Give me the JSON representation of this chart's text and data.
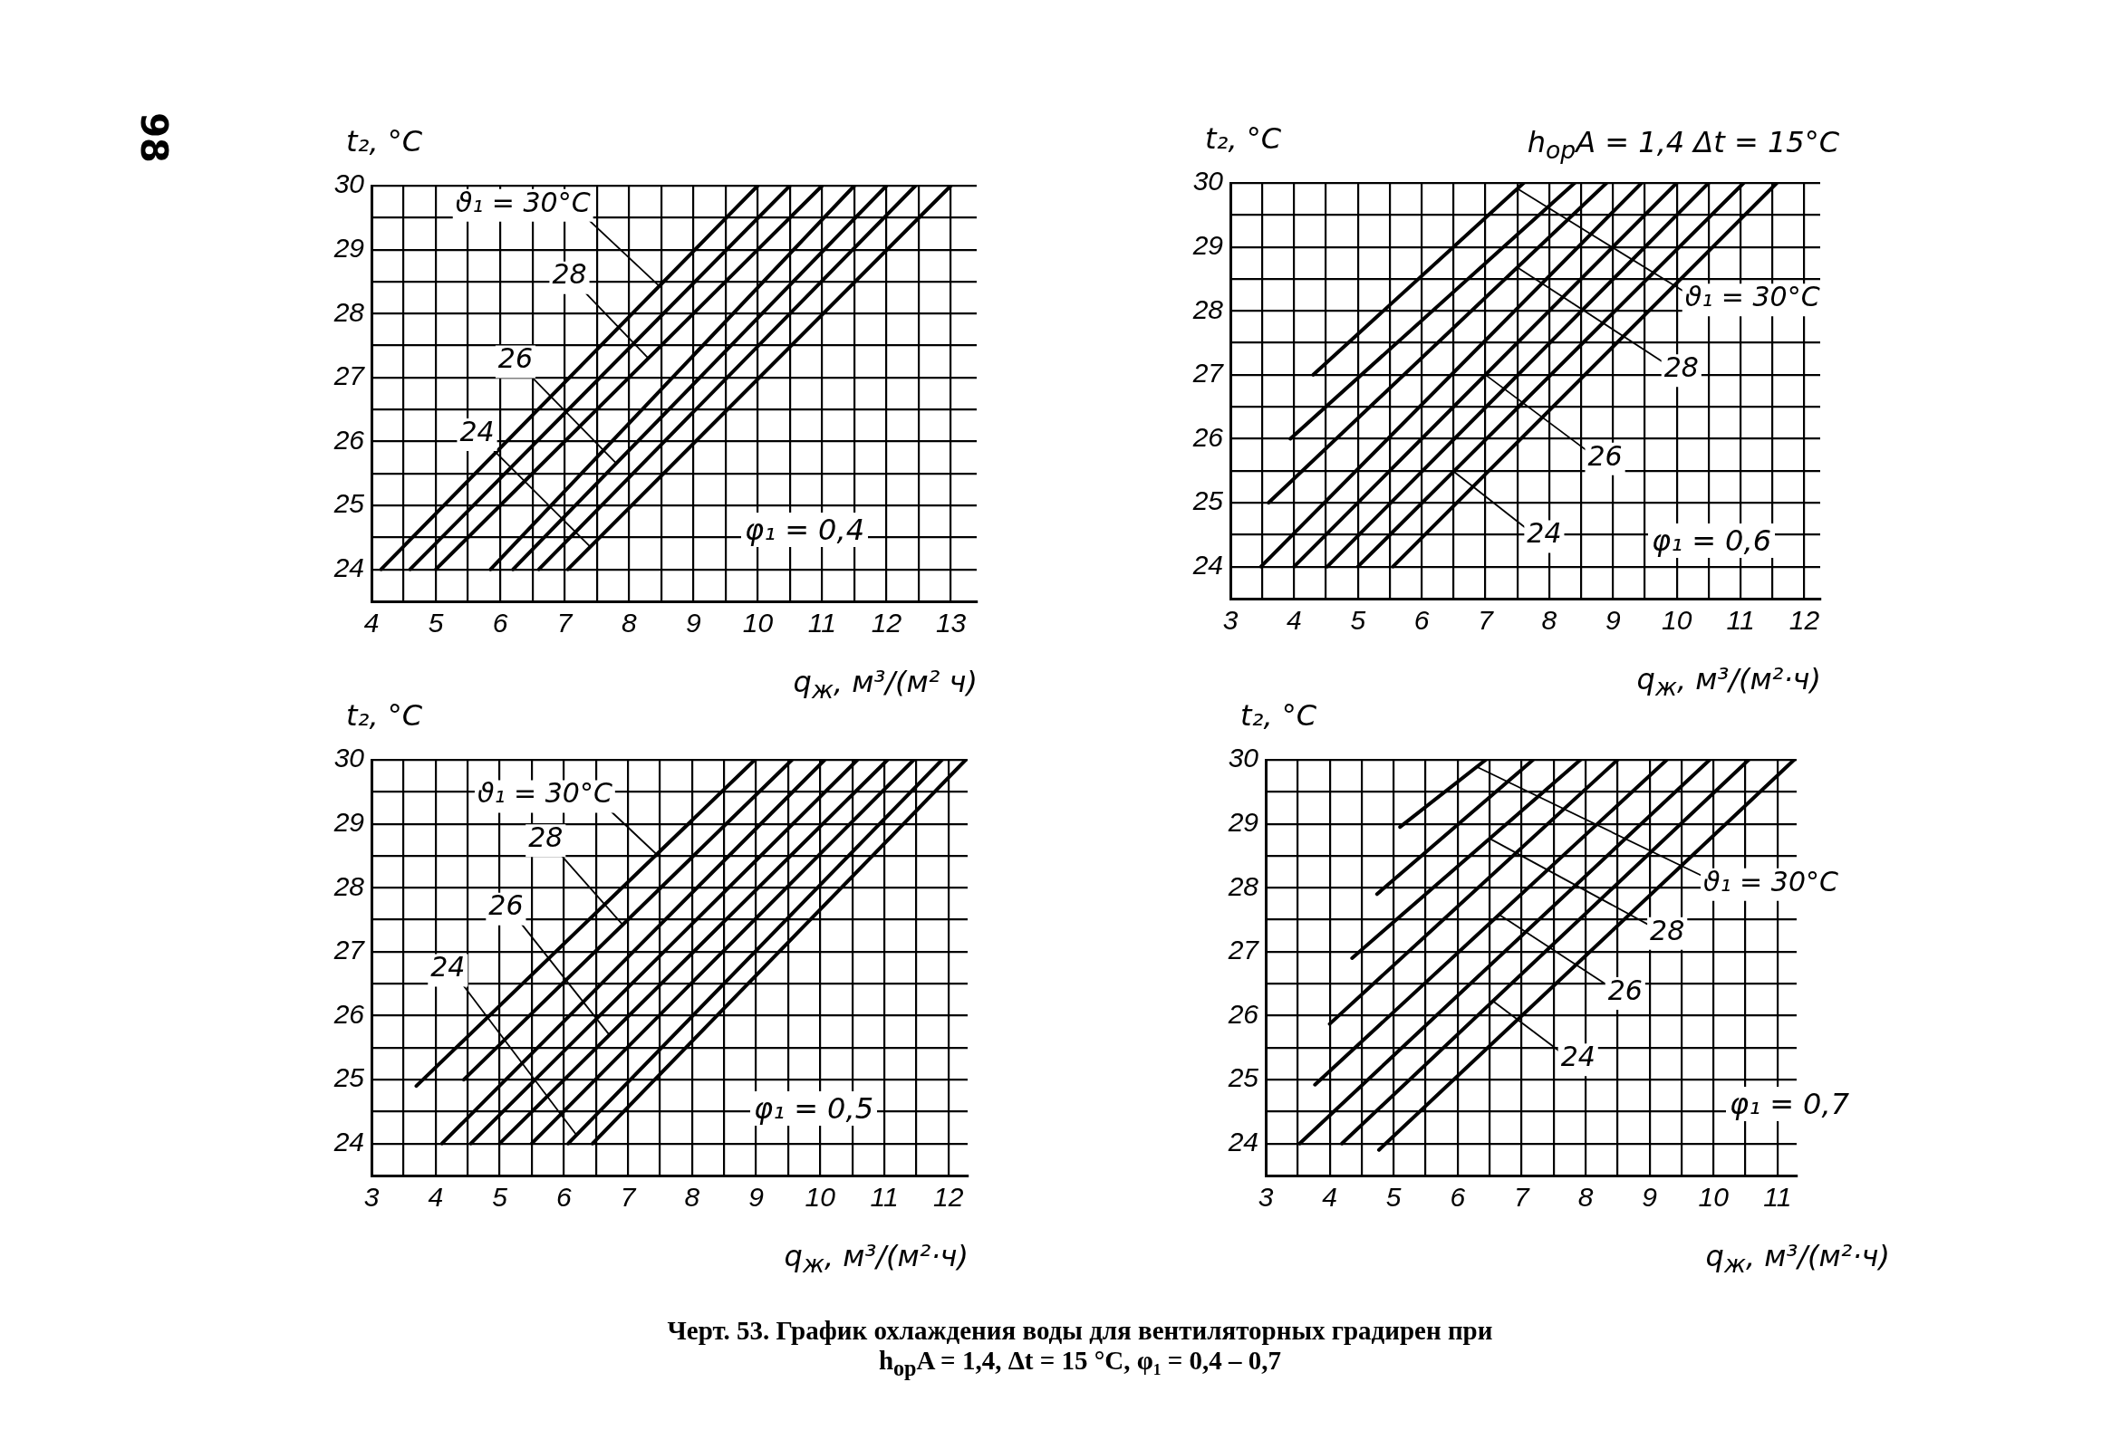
{
  "chart_data": [
    {
      "type": "line",
      "xlabel": "q$_{ж}$, м³/(м² ч)",
      "ylabel": "t₂, °C",
      "xlim": [
        4,
        13.4
      ],
      "ylim": [
        23.5,
        30
      ],
      "xticks": [
        4,
        {
          "value": 4.5,
          "label": null
        },
        5,
        {
          "value": 5.5,
          "label": null
        },
        6,
        {
          "value": 6.5,
          "label": null
        },
        7,
        {
          "value": 7.5,
          "label": null
        },
        8,
        {
          "value": 8.5,
          "label": null
        },
        9,
        {
          "value": 9.5,
          "label": null
        },
        10,
        {
          "value": 10.5,
          "label": null
        },
        11,
        {
          "value": 11.5,
          "label": null
        },
        12,
        {
          "value": 12.5,
          "label": null
        },
        13
      ],
      "yticks": [
        24,
        {
          "value": 24.5,
          "label": null
        },
        25,
        {
          "value": 25.5,
          "label": null
        },
        26,
        {
          "value": 26.5,
          "label": null
        },
        27,
        {
          "value": 27.5,
          "label": null
        },
        28,
        {
          "value": 28.5,
          "label": null
        },
        29,
        {
          "value": 29.5,
          "label": null
        },
        30
      ],
      "grid": true,
      "line_style": "solid",
      "series": [
        {
          "color": "#000000",
          "x": [
            4.15,
            10.0
          ],
          "values": [
            24,
            30
          ]
        },
        {
          "color": "#000000",
          "x": [
            4.6,
            10.5
          ],
          "values": [
            24,
            30
          ]
        },
        {
          "color": "#000000",
          "x": [
            5.0,
            11.0
          ],
          "values": [
            24,
            30
          ]
        },
        {
          "color": "#000000",
          "x": [
            5.85,
            11.5
          ],
          "values": [
            24,
            30
          ]
        },
        {
          "color": "#000000",
          "x": [
            6.2,
            12.0
          ],
          "values": [
            24,
            30
          ]
        },
        {
          "color": "#000000",
          "x": [
            6.6,
            12.45
          ],
          "values": [
            24,
            30
          ]
        },
        {
          "color": "#000000",
          "x": [
            7.05,
            13.0
          ],
          "values": [
            24,
            30
          ]
        }
      ],
      "annotations": [
        "98",
        "φ₁ = 0,4",
        {
          "text": "ϑ₁ = 30°C",
          "x": 8.47,
          "y": 28.43
        },
        {
          "text": "28",
          "x": 8.3,
          "y": 27.3
        },
        {
          "text": "26",
          "x": 7.8,
          "y": 25.66
        },
        {
          "text": "24",
          "x": 7.4,
          "y": 24.35
        }
      ]
    },
    {
      "type": "line",
      "xlabel": "q$_{ж}$, м³/(м²·ч)",
      "ylabel": "t₂, °C",
      "xlim": [
        3,
        12.25
      ],
      "ylim": [
        23.5,
        30
      ],
      "xticks": [
        3,
        {
          "value": 3.5,
          "label": null
        },
        4,
        {
          "value": 4.5,
          "label": null
        },
        5,
        {
          "value": 5.5,
          "label": null
        },
        6,
        {
          "value": 6.5,
          "label": null
        },
        7,
        {
          "value": 7.5,
          "label": null
        },
        8,
        {
          "value": 8.5,
          "label": null
        },
        9,
        {
          "value": 9.5,
          "label": null
        },
        10,
        {
          "value": 10.5,
          "label": null
        },
        11,
        {
          "value": 11.5,
          "label": null
        },
        12
      ],
      "yticks": [
        24,
        {
          "value": 24.5,
          "label": null
        },
        25,
        {
          "value": 25.5,
          "label": null
        },
        26,
        {
          "value": 26.5,
          "label": null
        },
        27,
        {
          "value": 27.5,
          "label": null
        },
        28,
        {
          "value": 28.5,
          "label": null
        },
        29,
        {
          "value": 29.5,
          "label": null
        },
        30
      ],
      "grid": true,
      "line_style": "solid",
      "series": [
        {
          "color": "#000000",
          "x": [
            4.3,
            7.6
          ],
          "values": [
            27,
            30
          ]
        },
        {
          "color": "#000000",
          "x": [
            3.94,
            8.4
          ],
          "values": [
            26,
            30
          ]
        },
        {
          "color": "#000000",
          "x": [
            3.6,
            8.9
          ],
          "values": [
            25,
            30
          ]
        },
        {
          "color": "#000000",
          "x": [
            3.48,
            9.45
          ],
          "values": [
            24,
            30
          ]
        },
        {
          "color": "#000000",
          "x": [
            4.0,
            10.0
          ],
          "values": [
            24,
            30
          ]
        },
        {
          "color": "#000000",
          "x": [
            4.52,
            10.5
          ],
          "values": [
            24,
            30
          ]
        },
        {
          "color": "#000000",
          "x": [
            5.0,
            11.05
          ],
          "values": [
            24,
            30
          ]
        },
        {
          "color": "#000000",
          "x": [
            5.55,
            11.57
          ],
          "values": [
            24,
            30
          ]
        }
      ],
      "annotations": [
        "h$_{ор}$A = 1,4   Δt = 15°C",
        "φ₁ = 0,6",
        {
          "text": "ϑ₁ = 30°C",
          "x": 7.5,
          "y": 29.91
        },
        {
          "text": "28",
          "x": 7.5,
          "y": 28.68
        },
        {
          "text": "26",
          "x": 7.0,
          "y": 27.0
        },
        {
          "text": "24",
          "x": 6.5,
          "y": 25.49
        }
      ]
    },
    {
      "type": "line",
      "xlabel": "q$_{ж}$, м³/(м²·ч)",
      "ylabel": "t₂, °C",
      "xlim": [
        3,
        12.3
      ],
      "ylim": [
        23.5,
        30
      ],
      "xticks": [
        3,
        {
          "value": 3.5,
          "label": null
        },
        4,
        {
          "value": 4.5,
          "label": null
        },
        5,
        {
          "value": 5.5,
          "label": null
        },
        6,
        {
          "value": 6.5,
          "label": null
        },
        7,
        {
          "value": 7.5,
          "label": null
        },
        8,
        {
          "value": 8.5,
          "label": null
        },
        9,
        {
          "value": 9.5,
          "label": null
        },
        10,
        {
          "value": 10.5,
          "label": null
        },
        11,
        {
          "value": 11.5,
          "label": null
        },
        12
      ],
      "yticks": [
        24,
        {
          "value": 24.5,
          "label": null
        },
        25,
        {
          "value": 25.5,
          "label": null
        },
        26,
        {
          "value": 26.5,
          "label": null
        },
        27,
        {
          "value": 27.5,
          "label": null
        },
        28,
        {
          "value": 28.5,
          "label": null
        },
        29,
        {
          "value": 29.5,
          "label": null
        },
        30
      ],
      "grid": true,
      "line_style": "solid",
      "series": [
        {
          "color": "#000000",
          "x": [
            3.7,
            8.98
          ],
          "values": [
            24.9,
            30
          ]
        },
        {
          "color": "#000000",
          "x": [
            4.44,
            9.56
          ],
          "values": [
            25,
            30
          ]
        },
        {
          "color": "#000000",
          "x": [
            4.1,
            10.07
          ],
          "values": [
            24,
            30
          ]
        },
        {
          "color": "#000000",
          "x": [
            4.55,
            10.58
          ],
          "values": [
            24,
            30
          ]
        },
        {
          "color": "#000000",
          "x": [
            5.0,
            11.05
          ],
          "values": [
            24,
            30
          ]
        },
        {
          "color": "#000000",
          "x": [
            5.5,
            11.46
          ],
          "values": [
            24,
            30
          ]
        },
        {
          "color": "#000000",
          "x": [
            6.07,
            11.9
          ],
          "values": [
            24,
            30
          ]
        },
        {
          "color": "#000000",
          "x": [
            6.45,
            12.27
          ],
          "values": [
            24,
            30
          ]
        }
      ],
      "annotations": [
        "φ₁ = 0,5",
        {
          "text": "ϑ₁ = 30°C",
          "x": 7.45,
          "y": 28.52
        },
        {
          "text": "28",
          "x": 6.92,
          "y": 27.42
        },
        {
          "text": "26",
          "x": 6.71,
          "y": 25.7
        },
        {
          "text": "24",
          "x": 6.2,
          "y": 24.13
        }
      ]
    },
    {
      "type": "line",
      "xlabel": "q$_{ж}$, м³/(м²·ч)",
      "ylabel": "t₂, °C",
      "xlim": [
        3,
        11.3
      ],
      "ylim": [
        23.5,
        30
      ],
      "xticks": [
        3,
        {
          "value": 3.5,
          "label": null
        },
        4,
        {
          "value": 4.5,
          "label": null
        },
        5,
        {
          "value": 5.5,
          "label": null
        },
        6,
        {
          "value": 6.5,
          "label": null
        },
        7,
        {
          "value": 7.5,
          "label": null
        },
        8,
        {
          "value": 8.5,
          "label": null
        },
        9,
        {
          "value": 9.5,
          "label": null
        },
        10,
        {
          "value": 10.5,
          "label": null
        },
        11
      ],
      "yticks": [
        24,
        {
          "value": 24.5,
          "label": null
        },
        25,
        {
          "value": 25.5,
          "label": null
        },
        26,
        {
          "value": 26.5,
          "label": null
        },
        27,
        {
          "value": 27.5,
          "label": null
        },
        28,
        {
          "value": 28.5,
          "label": null
        },
        29,
        {
          "value": 29.5,
          "label": null
        },
        30
      ],
      "grid": true,
      "line_style": "solid",
      "series": [
        {
          "color": "#000000",
          "x": [
            5.1,
            6.44
          ],
          "values": [
            28.95,
            30
          ]
        },
        {
          "color": "#000000",
          "x": [
            4.74,
            7.18
          ],
          "values": [
            27.9,
            30
          ]
        },
        {
          "color": "#000000",
          "x": [
            4.35,
            7.92
          ],
          "values": [
            26.9,
            30
          ]
        },
        {
          "color": "#000000",
          "x": [
            4.0,
            8.5
          ],
          "values": [
            25.87,
            30
          ]
        },
        {
          "color": "#000000",
          "x": [
            3.77,
            9.27
          ],
          "values": [
            24.92,
            30
          ]
        },
        {
          "color": "#000000",
          "x": [
            3.53,
            9.94
          ],
          "values": [
            24,
            30
          ]
        },
        {
          "color": "#000000",
          "x": [
            4.19,
            10.55
          ],
          "values": [
            24,
            30
          ]
        },
        {
          "color": "#000000",
          "x": [
            4.77,
            11.26
          ],
          "values": [
            23.9,
            30
          ]
        }
      ],
      "annotations": [
        "φ₁ = 0,7",
        "Черт. 53. График охлаждения воды для вентиляторных градирен при h$_{ор}$A = 1,4, Δt = 15 °C, φ₁ = 0,4 – 0,7",
        {
          "text": "ϑ₁ = 30°C",
          "x": 6.3,
          "y": 29.89
        },
        {
          "text": "28",
          "x": 6.5,
          "y": 28.77
        },
        {
          "text": "26",
          "x": 6.65,
          "y": 27.58
        },
        {
          "text": "24",
          "x": 6.55,
          "y": 26.23
        }
      ]
    }
  ]
}
